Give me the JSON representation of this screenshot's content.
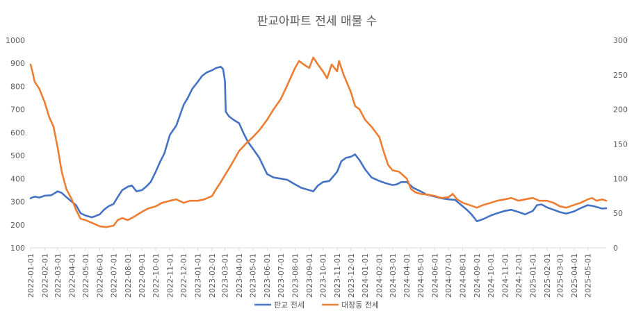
{
  "chart_data": {
    "type": "line",
    "title": "판교아파트 전세 매물 수",
    "xlabel": "",
    "ylabel": "",
    "y_left": {
      "min": 100,
      "max": 1000,
      "step": 100,
      "ticks": [
        "100",
        "200",
        "300",
        "400",
        "500",
        "600",
        "700",
        "800",
        "900",
        "1000"
      ]
    },
    "y_right": {
      "min": 0,
      "max": 300,
      "step": 50,
      "ticks": [
        "0",
        "50",
        "100",
        "150",
        "200",
        "250",
        "300"
      ]
    },
    "x_range": [
      "2022-01-01",
      "2025-06-10"
    ],
    "x_ticks": [
      "2022-01-01",
      "2022-02-01",
      "2022-03-01",
      "2022-04-01",
      "2022-05-01",
      "2022-06-01",
      "2022-07-01",
      "2022-08-01",
      "2022-09-01",
      "2022-10-01",
      "2022-11-01",
      "2022-12-01",
      "2023-01-01",
      "2023-02-01",
      "2023-03-01",
      "2023-04-01",
      "2023-05-01",
      "2023-06-01",
      "2023-07-01",
      "2023-08-01",
      "2023-09-01",
      "2023-10-01",
      "2023-11-01",
      "2023-12-01",
      "2024-01-01",
      "2024-02-01",
      "2024-03-01",
      "2024-04-01",
      "2024-05-01",
      "2024-06-01",
      "2024-07-01",
      "2024-08-01",
      "2024-09-01",
      "2024-10-01",
      "2024-11-01",
      "2024-12-01",
      "2025-01-01",
      "2025-02-01",
      "2025-03-01",
      "2025-04-01",
      "2025-05-01"
    ],
    "grid": false,
    "legend_position": "bottom",
    "series": [
      {
        "name": "판교 전세",
        "axis": "left",
        "color": "#4472C4",
        "points": [
          [
            "2022-01-01",
            315
          ],
          [
            "2022-01-10",
            322
          ],
          [
            "2022-01-20",
            318
          ],
          [
            "2022-02-01",
            326
          ],
          [
            "2022-02-15",
            328
          ],
          [
            "2022-03-01",
            345
          ],
          [
            "2022-03-10",
            338
          ],
          [
            "2022-03-20",
            320
          ],
          [
            "2022-04-01",
            300
          ],
          [
            "2022-04-10",
            285
          ],
          [
            "2022-04-20",
            250
          ],
          [
            "2022-05-01",
            240
          ],
          [
            "2022-05-15",
            232
          ],
          [
            "2022-06-01",
            245
          ],
          [
            "2022-06-10",
            265
          ],
          [
            "2022-06-20",
            280
          ],
          [
            "2022-07-01",
            290
          ],
          [
            "2022-07-10",
            320
          ],
          [
            "2022-07-20",
            350
          ],
          [
            "2022-08-01",
            365
          ],
          [
            "2022-08-10",
            370
          ],
          [
            "2022-08-20",
            345
          ],
          [
            "2022-09-01",
            350
          ],
          [
            "2022-09-10",
            365
          ],
          [
            "2022-09-20",
            385
          ],
          [
            "2022-10-01",
            430
          ],
          [
            "2022-10-10",
            470
          ],
          [
            "2022-10-20",
            510
          ],
          [
            "2022-11-01",
            590
          ],
          [
            "2022-11-15",
            630
          ],
          [
            "2022-12-01",
            720
          ],
          [
            "2022-12-10",
            750
          ],
          [
            "2022-12-20",
            790
          ],
          [
            "2023-01-01",
            820
          ],
          [
            "2023-01-10",
            845
          ],
          [
            "2023-01-20",
            860
          ],
          [
            "2023-02-01",
            870
          ],
          [
            "2023-02-10",
            880
          ],
          [
            "2023-02-20",
            885
          ],
          [
            "2023-02-25",
            875
          ],
          [
            "2023-03-01",
            825
          ],
          [
            "2023-03-03",
            690
          ],
          [
            "2023-03-10",
            670
          ],
          [
            "2023-03-20",
            655
          ],
          [
            "2023-04-01",
            640
          ],
          [
            "2023-04-10",
            600
          ],
          [
            "2023-04-20",
            560
          ],
          [
            "2023-05-01",
            530
          ],
          [
            "2023-05-15",
            490
          ],
          [
            "2023-06-01",
            420
          ],
          [
            "2023-06-15",
            405
          ],
          [
            "2023-07-01",
            400
          ],
          [
            "2023-07-15",
            395
          ],
          [
            "2023-08-01",
            375
          ],
          [
            "2023-08-15",
            360
          ],
          [
            "2023-09-01",
            350
          ],
          [
            "2023-09-10",
            345
          ],
          [
            "2023-09-20",
            370
          ],
          [
            "2023-10-01",
            385
          ],
          [
            "2023-10-15",
            390
          ],
          [
            "2023-11-01",
            430
          ],
          [
            "2023-11-10",
            475
          ],
          [
            "2023-11-20",
            490
          ],
          [
            "2023-12-01",
            495
          ],
          [
            "2023-12-10",
            505
          ],
          [
            "2023-12-20",
            480
          ],
          [
            "2024-01-01",
            440
          ],
          [
            "2024-01-15",
            405
          ],
          [
            "2024-02-01",
            390
          ],
          [
            "2024-02-15",
            380
          ],
          [
            "2024-03-01",
            372
          ],
          [
            "2024-03-10",
            375
          ],
          [
            "2024-03-20",
            385
          ],
          [
            "2024-04-01",
            385
          ],
          [
            "2024-04-15",
            360
          ],
          [
            "2024-05-01",
            345
          ],
          [
            "2024-05-15",
            330
          ],
          [
            "2024-06-01",
            322
          ],
          [
            "2024-06-15",
            315
          ],
          [
            "2024-07-01",
            310
          ],
          [
            "2024-07-15",
            308
          ],
          [
            "2024-08-01",
            280
          ],
          [
            "2024-08-10",
            265
          ],
          [
            "2024-08-20",
            245
          ],
          [
            "2024-09-01",
            215
          ],
          [
            "2024-09-15",
            225
          ],
          [
            "2024-10-01",
            240
          ],
          [
            "2024-10-15",
            250
          ],
          [
            "2024-11-01",
            260
          ],
          [
            "2024-11-15",
            265
          ],
          [
            "2024-12-01",
            255
          ],
          [
            "2024-12-15",
            245
          ],
          [
            "2025-01-01",
            260
          ],
          [
            "2025-01-10",
            285
          ],
          [
            "2025-01-20",
            288
          ],
          [
            "2025-02-01",
            275
          ],
          [
            "2025-02-15",
            265
          ],
          [
            "2025-03-01",
            255
          ],
          [
            "2025-03-15",
            248
          ],
          [
            "2025-04-01",
            258
          ],
          [
            "2025-04-15",
            272
          ],
          [
            "2025-05-01",
            285
          ],
          [
            "2025-05-15",
            280
          ],
          [
            "2025-06-01",
            270
          ],
          [
            "2025-06-10",
            272
          ]
        ]
      },
      {
        "name": "대장동 전세",
        "axis": "right",
        "color": "#ED7D31",
        "points": [
          [
            "2022-01-01",
            265
          ],
          [
            "2022-01-05",
            255
          ],
          [
            "2022-01-10",
            240
          ],
          [
            "2022-01-20",
            230
          ],
          [
            "2022-02-01",
            210
          ],
          [
            "2022-02-10",
            190
          ],
          [
            "2022-02-20",
            175
          ],
          [
            "2022-03-01",
            145
          ],
          [
            "2022-03-10",
            110
          ],
          [
            "2022-03-20",
            85
          ],
          [
            "2022-04-01",
            70
          ],
          [
            "2022-04-10",
            55
          ],
          [
            "2022-04-20",
            42
          ],
          [
            "2022-05-01",
            40
          ],
          [
            "2022-05-15",
            36
          ],
          [
            "2022-06-01",
            31
          ],
          [
            "2022-06-15",
            30
          ],
          [
            "2022-07-01",
            32
          ],
          [
            "2022-07-10",
            40
          ],
          [
            "2022-07-20",
            43
          ],
          [
            "2022-08-01",
            40
          ],
          [
            "2022-08-15",
            45
          ],
          [
            "2022-09-01",
            52
          ],
          [
            "2022-09-15",
            57
          ],
          [
            "2022-10-01",
            60
          ],
          [
            "2022-10-15",
            65
          ],
          [
            "2022-11-01",
            68
          ],
          [
            "2022-11-15",
            70
          ],
          [
            "2022-12-01",
            65
          ],
          [
            "2022-12-15",
            68
          ],
          [
            "2023-01-01",
            68
          ],
          [
            "2023-01-15",
            70
          ],
          [
            "2023-02-01",
            75
          ],
          [
            "2023-02-10",
            85
          ],
          [
            "2023-02-20",
            95
          ],
          [
            "2023-03-01",
            105
          ],
          [
            "2023-03-15",
            120
          ],
          [
            "2023-04-01",
            140
          ],
          [
            "2023-04-15",
            150
          ],
          [
            "2023-05-01",
            160
          ],
          [
            "2023-05-15",
            170
          ],
          [
            "2023-06-01",
            185
          ],
          [
            "2023-06-15",
            200
          ],
          [
            "2023-07-01",
            215
          ],
          [
            "2023-07-15",
            235
          ],
          [
            "2023-08-01",
            260
          ],
          [
            "2023-08-10",
            270
          ],
          [
            "2023-08-20",
            265
          ],
          [
            "2023-09-01",
            260
          ],
          [
            "2023-09-10",
            275
          ],
          [
            "2023-09-20",
            265
          ],
          [
            "2023-10-01",
            255
          ],
          [
            "2023-10-10",
            245
          ],
          [
            "2023-10-20",
            265
          ],
          [
            "2023-11-01",
            255
          ],
          [
            "2023-11-05",
            270
          ],
          [
            "2023-11-15",
            250
          ],
          [
            "2023-12-01",
            225
          ],
          [
            "2023-12-10",
            205
          ],
          [
            "2023-12-20",
            200
          ],
          [
            "2024-01-01",
            185
          ],
          [
            "2024-01-15",
            175
          ],
          [
            "2024-02-01",
            160
          ],
          [
            "2024-02-10",
            140
          ],
          [
            "2024-02-20",
            120
          ],
          [
            "2024-03-01",
            112
          ],
          [
            "2024-03-15",
            110
          ],
          [
            "2024-04-01",
            100
          ],
          [
            "2024-04-10",
            85
          ],
          [
            "2024-04-20",
            80
          ],
          [
            "2024-05-01",
            78
          ],
          [
            "2024-05-15",
            77
          ],
          [
            "2024-06-01",
            75
          ],
          [
            "2024-06-15",
            72
          ],
          [
            "2024-07-01",
            73
          ],
          [
            "2024-07-10",
            78
          ],
          [
            "2024-07-20",
            70
          ],
          [
            "2024-08-01",
            65
          ],
          [
            "2024-08-15",
            62
          ],
          [
            "2024-09-01",
            58
          ],
          [
            "2024-09-15",
            62
          ],
          [
            "2024-10-01",
            65
          ],
          [
            "2024-10-15",
            68
          ],
          [
            "2024-11-01",
            70
          ],
          [
            "2024-11-15",
            72
          ],
          [
            "2024-12-01",
            68
          ],
          [
            "2024-12-15",
            70
          ],
          [
            "2025-01-01",
            72
          ],
          [
            "2025-01-15",
            68
          ],
          [
            "2025-02-01",
            68
          ],
          [
            "2025-02-15",
            65
          ],
          [
            "2025-03-01",
            60
          ],
          [
            "2025-03-15",
            58
          ],
          [
            "2025-04-01",
            62
          ],
          [
            "2025-04-15",
            65
          ],
          [
            "2025-05-01",
            70
          ],
          [
            "2025-05-10",
            72
          ],
          [
            "2025-05-20",
            68
          ],
          [
            "2025-06-01",
            70
          ],
          [
            "2025-06-10",
            68
          ]
        ]
      }
    ]
  }
}
